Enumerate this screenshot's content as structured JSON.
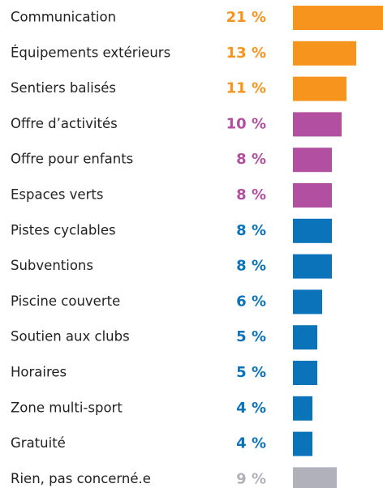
{
  "chart_data": {
    "type": "bar",
    "orientation": "horizontal",
    "categories": [
      "Communication",
      "Équipements extérieurs",
      "Sentiers balisés",
      "Offre d’activités",
      "Offre pour enfants",
      "Espaces verts",
      "Pistes cyclables",
      "Subventions",
      "Piscine couverte",
      "Soutien aux clubs",
      "Horaires",
      "Zone multi-sport",
      "Gratuité",
      "Rien, pas concerné.e"
    ],
    "values": [
      21,
      13,
      11,
      10,
      8,
      8,
      8,
      8,
      6,
      5,
      5,
      4,
      4,
      9
    ],
    "value_labels": [
      "21 %",
      "13 %",
      "11 %",
      "10 %",
      "8 %",
      "8 %",
      "8 %",
      "8 %",
      "6 %",
      "5 %",
      "5 %",
      "4 %",
      "4 %",
      "9 %"
    ],
    "colors": [
      "#f7941d",
      "#f7941d",
      "#f7941d",
      "#b24fa1",
      "#b24fa1",
      "#b24fa1",
      "#0b73b9",
      "#0b73b9",
      "#0b73b9",
      "#0b73b9",
      "#0b73b9",
      "#0b73b9",
      "#0b73b9",
      "#b0b1bb"
    ]
  }
}
